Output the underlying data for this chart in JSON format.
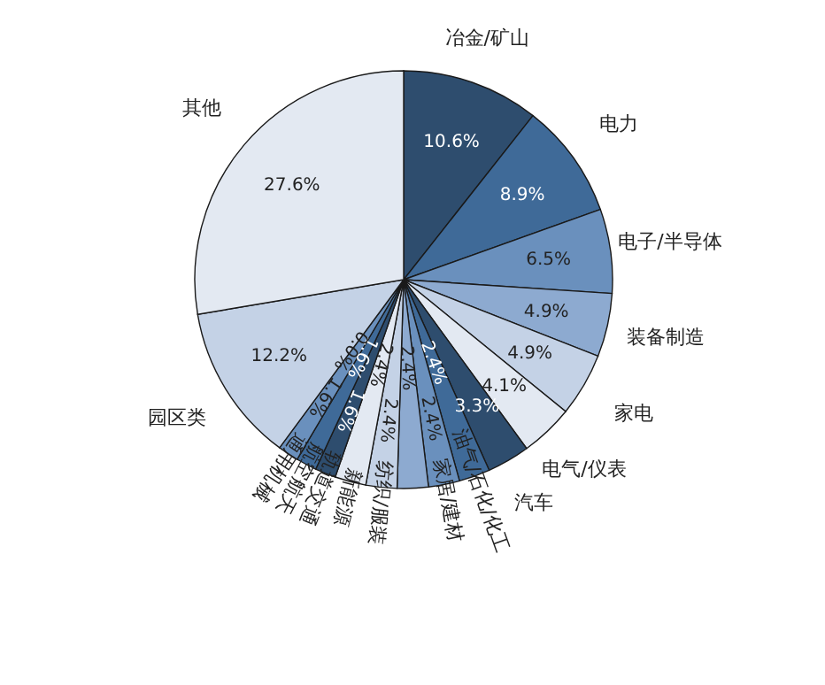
{
  "chart_data": {
    "type": "pie",
    "categories": [
      "冶金/矿山",
      "电力",
      "电子/半导体",
      "装备制造",
      "家电",
      "电气/仪表",
      "汽车",
      "油气/石化/化工",
      "家居/建材",
      null,
      "纺织/服装",
      "新能源",
      "轨道交通",
      "航空航天",
      "通用机械",
      null,
      "园区类",
      "其他"
    ],
    "values": [
      10.6,
      8.9,
      6.5,
      4.9,
      4.9,
      4.1,
      3.3,
      2.4,
      2.4,
      2.4,
      2.4,
      2.4,
      1.6,
      1.6,
      1.6,
      0.0,
      12.2,
      27.6
    ],
    "value_labels": [
      "10.6%",
      "8.9%",
      "6.5%",
      "4.9%",
      "4.9%",
      "4.1%",
      "3.3%",
      "2.4%",
      "2.4%",
      "2.4%",
      "2.4%",
      "2.4%",
      "1.6%",
      "1.6%",
      "1.6%",
      "0.0%",
      "12.2%",
      "27.6%"
    ],
    "colors": [
      "#2e4d6e",
      "#3f6a98",
      "#6a90bd",
      "#8daad0",
      "#c4d2e6",
      "#e3e9f2",
      "#2e4d6e",
      "#3f6a98",
      "#6a90bd",
      "#8daad0",
      "#c4d2e6",
      "#e3e9f2",
      "#2e4d6e",
      "#3f6a98",
      "#6a90bd",
      "#8daad0",
      "#c4d2e6",
      "#e3e9f2"
    ]
  }
}
